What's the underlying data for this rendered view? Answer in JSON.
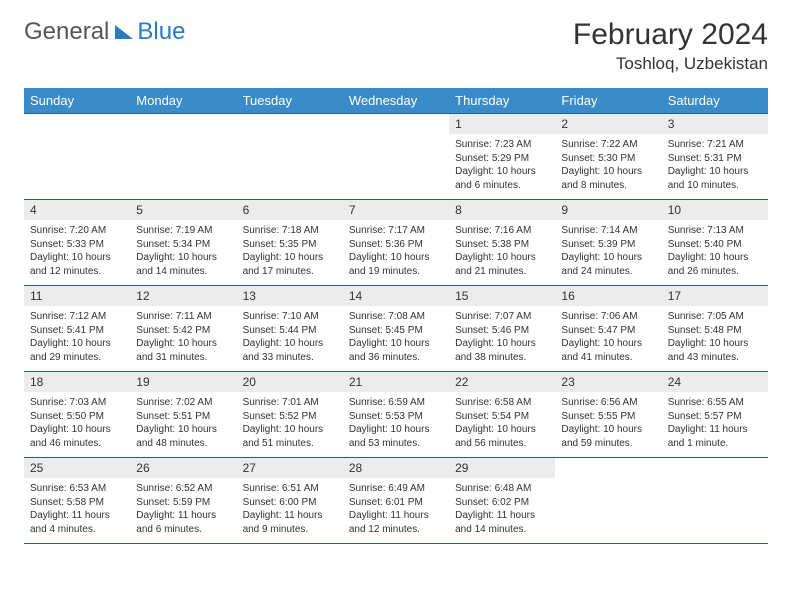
{
  "brand": {
    "word1": "General",
    "word2": "Blue"
  },
  "title": {
    "month": "February 2024",
    "location": "Toshloq, Uzbekistan"
  },
  "colors": {
    "header_bg": "#3b8bc9",
    "rule": "#2a5a88",
    "daynum_bg": "#ececec",
    "brand_blue": "#2a7bbf"
  },
  "daynames": [
    "Sunday",
    "Monday",
    "Tuesday",
    "Wednesday",
    "Thursday",
    "Friday",
    "Saturday"
  ],
  "weeks": [
    [
      {
        "n": "",
        "sr": "",
        "ss": "",
        "dl": ""
      },
      {
        "n": "",
        "sr": "",
        "ss": "",
        "dl": ""
      },
      {
        "n": "",
        "sr": "",
        "ss": "",
        "dl": ""
      },
      {
        "n": "",
        "sr": "",
        "ss": "",
        "dl": ""
      },
      {
        "n": "1",
        "sr": "Sunrise: 7:23 AM",
        "ss": "Sunset: 5:29 PM",
        "dl": "Daylight: 10 hours and 6 minutes."
      },
      {
        "n": "2",
        "sr": "Sunrise: 7:22 AM",
        "ss": "Sunset: 5:30 PM",
        "dl": "Daylight: 10 hours and 8 minutes."
      },
      {
        "n": "3",
        "sr": "Sunrise: 7:21 AM",
        "ss": "Sunset: 5:31 PM",
        "dl": "Daylight: 10 hours and 10 minutes."
      }
    ],
    [
      {
        "n": "4",
        "sr": "Sunrise: 7:20 AM",
        "ss": "Sunset: 5:33 PM",
        "dl": "Daylight: 10 hours and 12 minutes."
      },
      {
        "n": "5",
        "sr": "Sunrise: 7:19 AM",
        "ss": "Sunset: 5:34 PM",
        "dl": "Daylight: 10 hours and 14 minutes."
      },
      {
        "n": "6",
        "sr": "Sunrise: 7:18 AM",
        "ss": "Sunset: 5:35 PM",
        "dl": "Daylight: 10 hours and 17 minutes."
      },
      {
        "n": "7",
        "sr": "Sunrise: 7:17 AM",
        "ss": "Sunset: 5:36 PM",
        "dl": "Daylight: 10 hours and 19 minutes."
      },
      {
        "n": "8",
        "sr": "Sunrise: 7:16 AM",
        "ss": "Sunset: 5:38 PM",
        "dl": "Daylight: 10 hours and 21 minutes."
      },
      {
        "n": "9",
        "sr": "Sunrise: 7:14 AM",
        "ss": "Sunset: 5:39 PM",
        "dl": "Daylight: 10 hours and 24 minutes."
      },
      {
        "n": "10",
        "sr": "Sunrise: 7:13 AM",
        "ss": "Sunset: 5:40 PM",
        "dl": "Daylight: 10 hours and 26 minutes."
      }
    ],
    [
      {
        "n": "11",
        "sr": "Sunrise: 7:12 AM",
        "ss": "Sunset: 5:41 PM",
        "dl": "Daylight: 10 hours and 29 minutes."
      },
      {
        "n": "12",
        "sr": "Sunrise: 7:11 AM",
        "ss": "Sunset: 5:42 PM",
        "dl": "Daylight: 10 hours and 31 minutes."
      },
      {
        "n": "13",
        "sr": "Sunrise: 7:10 AM",
        "ss": "Sunset: 5:44 PM",
        "dl": "Daylight: 10 hours and 33 minutes."
      },
      {
        "n": "14",
        "sr": "Sunrise: 7:08 AM",
        "ss": "Sunset: 5:45 PM",
        "dl": "Daylight: 10 hours and 36 minutes."
      },
      {
        "n": "15",
        "sr": "Sunrise: 7:07 AM",
        "ss": "Sunset: 5:46 PM",
        "dl": "Daylight: 10 hours and 38 minutes."
      },
      {
        "n": "16",
        "sr": "Sunrise: 7:06 AM",
        "ss": "Sunset: 5:47 PM",
        "dl": "Daylight: 10 hours and 41 minutes."
      },
      {
        "n": "17",
        "sr": "Sunrise: 7:05 AM",
        "ss": "Sunset: 5:48 PM",
        "dl": "Daylight: 10 hours and 43 minutes."
      }
    ],
    [
      {
        "n": "18",
        "sr": "Sunrise: 7:03 AM",
        "ss": "Sunset: 5:50 PM",
        "dl": "Daylight: 10 hours and 46 minutes."
      },
      {
        "n": "19",
        "sr": "Sunrise: 7:02 AM",
        "ss": "Sunset: 5:51 PM",
        "dl": "Daylight: 10 hours and 48 minutes."
      },
      {
        "n": "20",
        "sr": "Sunrise: 7:01 AM",
        "ss": "Sunset: 5:52 PM",
        "dl": "Daylight: 10 hours and 51 minutes."
      },
      {
        "n": "21",
        "sr": "Sunrise: 6:59 AM",
        "ss": "Sunset: 5:53 PM",
        "dl": "Daylight: 10 hours and 53 minutes."
      },
      {
        "n": "22",
        "sr": "Sunrise: 6:58 AM",
        "ss": "Sunset: 5:54 PM",
        "dl": "Daylight: 10 hours and 56 minutes."
      },
      {
        "n": "23",
        "sr": "Sunrise: 6:56 AM",
        "ss": "Sunset: 5:55 PM",
        "dl": "Daylight: 10 hours and 59 minutes."
      },
      {
        "n": "24",
        "sr": "Sunrise: 6:55 AM",
        "ss": "Sunset: 5:57 PM",
        "dl": "Daylight: 11 hours and 1 minute."
      }
    ],
    [
      {
        "n": "25",
        "sr": "Sunrise: 6:53 AM",
        "ss": "Sunset: 5:58 PM",
        "dl": "Daylight: 11 hours and 4 minutes."
      },
      {
        "n": "26",
        "sr": "Sunrise: 6:52 AM",
        "ss": "Sunset: 5:59 PM",
        "dl": "Daylight: 11 hours and 6 minutes."
      },
      {
        "n": "27",
        "sr": "Sunrise: 6:51 AM",
        "ss": "Sunset: 6:00 PM",
        "dl": "Daylight: 11 hours and 9 minutes."
      },
      {
        "n": "28",
        "sr": "Sunrise: 6:49 AM",
        "ss": "Sunset: 6:01 PM",
        "dl": "Daylight: 11 hours and 12 minutes."
      },
      {
        "n": "29",
        "sr": "Sunrise: 6:48 AM",
        "ss": "Sunset: 6:02 PM",
        "dl": "Daylight: 11 hours and 14 minutes."
      },
      {
        "n": "",
        "sr": "",
        "ss": "",
        "dl": ""
      },
      {
        "n": "",
        "sr": "",
        "ss": "",
        "dl": ""
      }
    ]
  ]
}
